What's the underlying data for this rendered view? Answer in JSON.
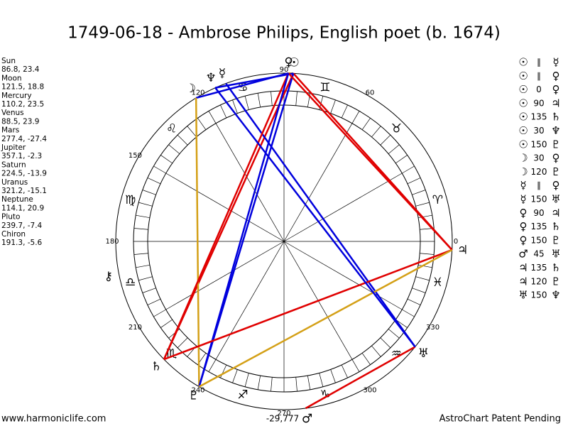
{
  "title": "1749-06-18 - Ambrose Philips, English poet (b. 1674)",
  "planets": [
    {
      "name": "Sun",
      "glyph": "☉",
      "lon": 86.8,
      "lat": 23.4
    },
    {
      "name": "Moon",
      "glyph": "☽",
      "lon": 121.5,
      "lat": 18.8
    },
    {
      "name": "Mercury",
      "glyph": "☿",
      "lon": 110.2,
      "lat": 23.5
    },
    {
      "name": "Venus",
      "glyph": "♀",
      "lon": 88.5,
      "lat": 23.9
    },
    {
      "name": "Mars",
      "glyph": "♂",
      "lon": 277.4,
      "lat": -27.4
    },
    {
      "name": "Jupiter",
      "glyph": "♃",
      "lon": 357.1,
      "lat": -2.3
    },
    {
      "name": "Saturn",
      "glyph": "♄",
      "lon": 224.5,
      "lat": -13.9
    },
    {
      "name": "Uranus",
      "glyph": "♅",
      "lon": 321.2,
      "lat": -15.1
    },
    {
      "name": "Neptune",
      "glyph": "♆",
      "lon": 114.1,
      "lat": 20.9
    },
    {
      "name": "Pluto",
      "glyph": "♇",
      "lon": 239.7,
      "lat": -7.4
    },
    {
      "name": "Chiron",
      "glyph": "⚷",
      "lon": 191.3,
      "lat": -5.6
    }
  ],
  "signs": [
    "♈",
    "♉",
    "♊",
    "♋",
    "♌",
    "♍",
    "♎",
    "♏",
    "♐",
    "♑",
    "♒",
    "♓"
  ],
  "degree_labels": [
    0,
    60,
    90,
    120,
    150,
    180,
    210,
    240,
    270,
    300,
    330
  ],
  "aspects": [
    {
      "p1": "☉",
      "aspect": "∥",
      "p2": "☿"
    },
    {
      "p1": "☉",
      "aspect": "∥",
      "p2": "♀"
    },
    {
      "p1": "☉",
      "aspect": 0,
      "p2": "♀",
      "color": "#d4a017"
    },
    {
      "p1": "☉",
      "aspect": 90,
      "p2": "♃",
      "color": "#e00000"
    },
    {
      "p1": "☉",
      "aspect": 135,
      "p2": "♄",
      "color": "#e00000"
    },
    {
      "p1": "☉",
      "aspect": 30,
      "p2": "♆",
      "color": "#0000dd"
    },
    {
      "p1": "☉",
      "aspect": 150,
      "p2": "♇",
      "color": "#0000dd"
    },
    {
      "p1": "☽",
      "aspect": 30,
      "p2": "♀",
      "color": "#0000dd"
    },
    {
      "p1": "☽",
      "aspect": 120,
      "p2": "♇",
      "color": "#d4a017"
    },
    {
      "p1": "☿",
      "aspect": "∥",
      "p2": "♀"
    },
    {
      "p1": "☿",
      "aspect": 150,
      "p2": "♅",
      "color": "#0000dd"
    },
    {
      "p1": "♀",
      "aspect": 90,
      "p2": "♃",
      "color": "#e00000"
    },
    {
      "p1": "♀",
      "aspect": 135,
      "p2": "♄",
      "color": "#e00000"
    },
    {
      "p1": "♀",
      "aspect": 150,
      "p2": "♇",
      "color": "#0000dd"
    },
    {
      "p1": "♂",
      "aspect": 45,
      "p2": "♅",
      "color": "#e00000"
    },
    {
      "p1": "♃",
      "aspect": 135,
      "p2": "♄",
      "color": "#e00000"
    },
    {
      "p1": "♃",
      "aspect": 120,
      "p2": "♇",
      "color": "#d4a017"
    },
    {
      "p1": "♅",
      "aspect": 150,
      "p2": "♆",
      "color": "#0000dd"
    }
  ],
  "center_note": "-29,777",
  "footer": {
    "left": "www.harmoniclife.com",
    "right": "AstroChart Patent Pending"
  }
}
